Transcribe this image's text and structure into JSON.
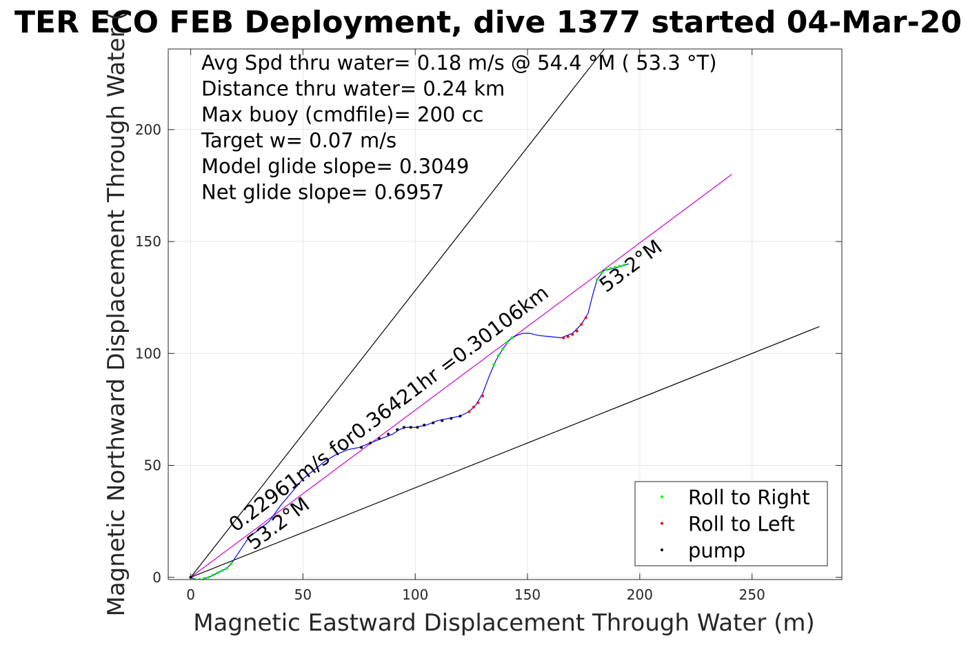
{
  "chart_data": {
    "type": "scatter",
    "title": "TER ECO FEB Deployment, dive 1377 started 04-Mar-20",
    "xlabel": "Magnetic Eastward Displacement Through Water (m)",
    "ylabel": "Magnetic Northward Displacement Through Water (",
    "xlim": [
      -10,
      290
    ],
    "ylim": [
      -1,
      236
    ],
    "xticks": [
      0,
      50,
      100,
      150,
      200,
      250
    ],
    "yticks": [
      0,
      50,
      100,
      150,
      200
    ],
    "grid": true,
    "info_lines": [
      "Avg Spd thru water=  0.18 m/s @  54.4 °M ( 53.3 °T)",
      "Distance thru water=  0.24 km",
      "Max buoy (cmdfile)= 200 cc",
      "Target w= 0.07 m/s",
      "Model glide slope= 0.3049",
      "Net glide slope= 0.6957"
    ],
    "annotations": [
      {
        "text": "0.22961m/s for0.36421hr =0.30106km",
        "x": 20,
        "y": 20,
        "rotation_deg": -37
      },
      {
        "text": "53.2°M",
        "x": 28,
        "y": 12,
        "rotation_deg": -37
      },
      {
        "text": "53.2°M",
        "x": 185,
        "y": 127,
        "rotation_deg": -37
      }
    ],
    "legend": {
      "placement": "bottom-right",
      "entries": [
        {
          "label": "Roll to Right",
          "color": "#00ff00"
        },
        {
          "label": "Roll to Left",
          "color": "#ff0000"
        },
        {
          "label": "pump",
          "color": "#000000"
        }
      ]
    },
    "reference_lines": [
      {
        "name": "upper bound",
        "color": "#000000",
        "points": [
          [
            0,
            0
          ],
          [
            185,
            237
          ]
        ]
      },
      {
        "name": "lower bound",
        "color": "#000000",
        "points": [
          [
            0,
            0
          ],
          [
            280,
            112
          ]
        ]
      },
      {
        "name": "net heading",
        "color": "#cc00cc",
        "points": [
          [
            0,
            0
          ],
          [
            241,
            180
          ]
        ]
      }
    ],
    "track": {
      "color": "#0000ff",
      "points": [
        [
          0,
          0
        ],
        [
          2,
          -1
        ],
        [
          5,
          -1
        ],
        [
          8,
          0
        ],
        [
          12,
          2
        ],
        [
          16,
          4
        ],
        [
          18,
          6
        ],
        [
          22,
          12
        ],
        [
          26,
          18
        ],
        [
          30,
          21
        ],
        [
          35,
          25
        ],
        [
          40,
          32
        ],
        [
          45,
          38
        ],
        [
          50,
          44
        ],
        [
          55,
          48
        ],
        [
          60,
          52
        ],
        [
          65,
          55
        ],
        [
          70,
          57
        ],
        [
          75,
          58
        ],
        [
          80,
          60
        ],
        [
          85,
          62
        ],
        [
          90,
          64
        ],
        [
          93,
          66
        ],
        [
          96,
          67
        ],
        [
          100,
          67
        ],
        [
          105,
          68
        ],
        [
          110,
          70
        ],
        [
          115,
          71
        ],
        [
          120,
          72
        ],
        [
          124,
          74
        ],
        [
          127,
          77
        ],
        [
          130,
          82
        ],
        [
          133,
          90
        ],
        [
          136,
          97
        ],
        [
          139,
          102
        ],
        [
          142,
          106
        ],
        [
          145,
          108
        ],
        [
          148,
          109
        ],
        [
          151,
          109
        ],
        [
          155,
          108
        ],
        [
          160,
          107.5
        ],
        [
          165,
          107
        ],
        [
          170,
          109
        ],
        [
          174,
          113
        ],
        [
          177,
          118
        ],
        [
          179,
          126
        ],
        [
          181,
          133
        ],
        [
          184,
          137
        ],
        [
          188,
          138
        ],
        [
          192,
          139
        ],
        [
          195,
          140
        ]
      ]
    },
    "series": [
      {
        "name": "Roll to Right",
        "color": "#00ff00",
        "x": [
          2,
          4,
          6,
          8,
          10,
          12,
          14,
          16,
          18,
          135,
          137,
          139,
          141,
          143,
          181,
          183,
          185,
          187,
          189,
          191,
          193
        ],
        "y": [
          -1,
          -1,
          -0.5,
          0,
          1,
          2,
          3,
          4,
          6,
          95,
          99,
          102,
          105,
          107,
          133,
          136,
          137.5,
          138,
          138.5,
          139,
          139.5
        ]
      },
      {
        "name": "Roll to Left",
        "color": "#ff0000",
        "x": [
          0,
          124,
          126,
          128,
          130,
          166,
          168,
          170,
          172,
          174,
          176
        ],
        "y": [
          0,
          74,
          76,
          78,
          81,
          107,
          107.5,
          108.5,
          110,
          113,
          116
        ]
      },
      {
        "name": "pump",
        "color": "#000000",
        "x": [
          0,
          76,
          80,
          84,
          88,
          92,
          95,
          98,
          101,
          104,
          108,
          112,
          116,
          120
        ],
        "y": [
          0,
          58,
          60,
          62,
          64,
          66,
          67,
          67,
          67,
          68,
          69,
          70,
          71,
          72
        ]
      }
    ]
  }
}
